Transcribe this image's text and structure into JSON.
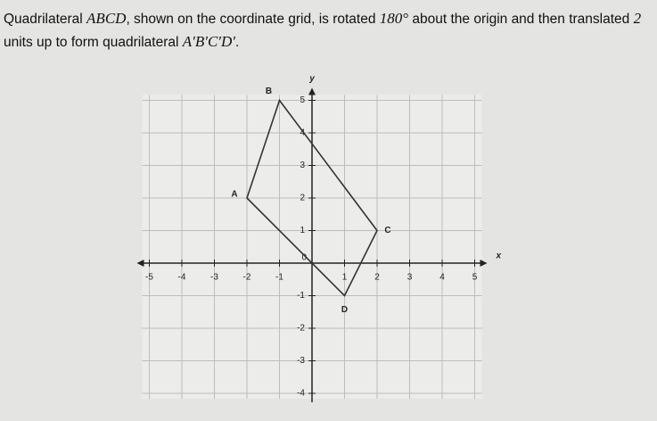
{
  "question": {
    "segments": [
      "Quadrilateral ",
      "ABCD",
      ", shown on the coordinate grid, is rotated ",
      "180°",
      " about the origin and then translated ",
      "2",
      " units up to form quadrilateral ",
      "A′B′C′D′",
      "."
    ]
  },
  "graph": {
    "x_axis_label": "x",
    "y_axis_label": "y",
    "origin_label": "0",
    "x_ticks": [
      -5,
      -4,
      -3,
      -2,
      -1,
      1,
      2,
      3,
      4,
      5
    ],
    "y_ticks": [
      -4,
      -3,
      -2,
      -1,
      1,
      2,
      3,
      4,
      5
    ],
    "points": [
      {
        "label": "A",
        "x": -2,
        "y": 2
      },
      {
        "label": "B",
        "x": -1,
        "y": 5
      },
      {
        "label": "C",
        "x": 2,
        "y": 1
      },
      {
        "label": "D",
        "x": 1,
        "y": -1
      }
    ]
  }
}
